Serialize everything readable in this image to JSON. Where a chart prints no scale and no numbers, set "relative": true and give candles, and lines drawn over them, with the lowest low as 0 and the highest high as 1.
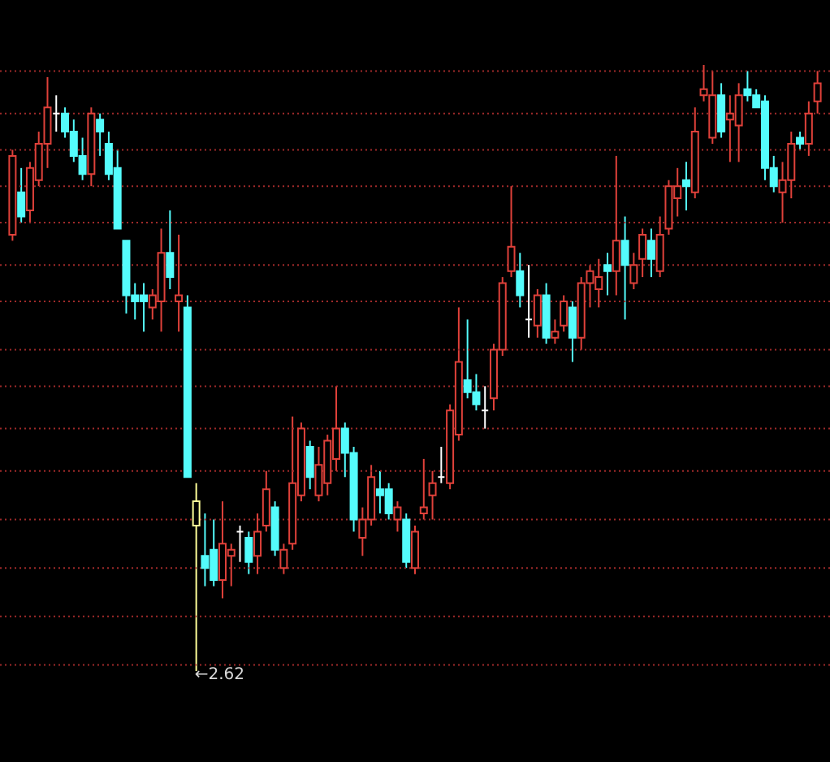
{
  "chart_data": {
    "type": "candlestick",
    "relative": true,
    "ref_lines": [
      {
        "axis": "y",
        "value": 0.01,
        "color": "#a02a2a",
        "line_style": "dotted"
      },
      {
        "axis": "y",
        "value": 0.09,
        "color": "#a02a2a",
        "line_style": "dotted"
      },
      {
        "axis": "y",
        "value": 0.17,
        "color": "#a02a2a",
        "line_style": "dotted"
      },
      {
        "axis": "y",
        "value": 0.25,
        "color": "#a02a2a",
        "line_style": "dotted"
      },
      {
        "axis": "y",
        "value": 0.33,
        "color": "#a02a2a",
        "line_style": "dotted"
      },
      {
        "axis": "y",
        "value": 0.4,
        "color": "#a02a2a",
        "line_style": "dotted"
      },
      {
        "axis": "y",
        "value": 0.47,
        "color": "#a02a2a",
        "line_style": "dotted"
      },
      {
        "axis": "y",
        "value": 0.53,
        "color": "#a02a2a",
        "line_style": "dotted"
      },
      {
        "axis": "y",
        "value": 0.61,
        "color": "#a02a2a",
        "line_style": "dotted"
      },
      {
        "axis": "y",
        "value": 0.67,
        "color": "#a02a2a",
        "line_style": "dotted"
      },
      {
        "axis": "y",
        "value": 0.74,
        "color": "#a02a2a",
        "line_style": "dotted"
      },
      {
        "axis": "y",
        "value": 0.8,
        "color": "#a02a2a",
        "line_style": "dotted"
      },
      {
        "axis": "y",
        "value": 0.86,
        "color": "#a02a2a",
        "line_style": "dotted"
      },
      {
        "axis": "y",
        "value": 0.92,
        "color": "#a02a2a",
        "line_style": "dotted"
      },
      {
        "axis": "y",
        "value": 0.99,
        "color": "#a02a2a",
        "line_style": "dotted"
      }
    ],
    "categories": [
      null,
      null,
      null,
      null,
      null,
      null,
      null,
      null,
      null,
      null,
      null,
      null,
      null,
      null,
      null,
      null,
      null,
      null,
      null,
      null,
      null,
      null,
      null,
      null,
      null,
      null,
      null,
      null,
      null,
      null,
      null,
      null,
      null,
      null,
      null,
      null,
      null,
      null,
      null,
      null,
      null,
      null,
      null,
      null,
      null,
      null,
      null,
      null,
      null,
      null,
      null,
      null,
      null,
      null,
      null,
      null,
      null,
      null,
      null,
      null,
      null,
      null,
      null,
      null,
      null,
      null,
      null,
      null,
      null,
      null,
      null,
      null,
      null,
      null,
      null,
      null,
      null,
      null,
      null,
      null,
      null,
      null,
      null,
      null,
      null,
      null,
      null,
      null,
      null,
      null,
      null,
      null,
      null
    ],
    "ohlc": [
      [
        0.72,
        0.86,
        0.71,
        0.85
      ],
      [
        0.79,
        0.83,
        0.74,
        0.75
      ],
      [
        0.76,
        0.84,
        0.74,
        0.83
      ],
      [
        0.81,
        0.89,
        0.8,
        0.87
      ],
      [
        0.87,
        0.98,
        0.83,
        0.93
      ],
      [
        0.92,
        0.95,
        0.89,
        0.92
      ],
      [
        0.92,
        0.93,
        0.88,
        0.89
      ],
      [
        0.89,
        0.91,
        0.84,
        0.85
      ],
      [
        0.85,
        0.88,
        0.81,
        0.82
      ],
      [
        0.82,
        0.93,
        0.8,
        0.92
      ],
      [
        0.91,
        0.92,
        0.85,
        0.89
      ],
      [
        0.87,
        0.89,
        0.81,
        0.82
      ],
      [
        0.83,
        0.86,
        0.73,
        0.73
      ],
      [
        0.71,
        0.71,
        0.59,
        0.62
      ],
      [
        0.62,
        0.64,
        0.58,
        0.61
      ],
      [
        0.62,
        0.64,
        0.56,
        0.61
      ],
      [
        0.6,
        0.63,
        0.58,
        0.62
      ],
      [
        0.61,
        0.73,
        0.56,
        0.69
      ],
      [
        0.69,
        0.76,
        0.63,
        0.65
      ],
      [
        0.61,
        0.72,
        0.56,
        0.62
      ],
      [
        0.6,
        0.62,
        0.32,
        0.32
      ],
      [
        0.24,
        0.31,
        0,
        0.28
      ],
      [
        0.19,
        0.26,
        0.14,
        0.17
      ],
      [
        0.2,
        0.25,
        0.14,
        0.15
      ],
      [
        0.15,
        0.28,
        0.12,
        0.21
      ],
      [
        0.19,
        0.21,
        0.14,
        0.2
      ],
      [
        0.23,
        0.24,
        0.18,
        0.23
      ],
      [
        0.22,
        0.23,
        0.16,
        0.18
      ],
      [
        0.19,
        0.26,
        0.16,
        0.23
      ],
      [
        0.24,
        0.33,
        0.23,
        0.3
      ],
      [
        0.27,
        0.28,
        0.19,
        0.2
      ],
      [
        0.17,
        0.21,
        0.16,
        0.2
      ],
      [
        0.21,
        0.42,
        0.2,
        0.31
      ],
      [
        0.29,
        0.41,
        0.28,
        0.4
      ],
      [
        0.37,
        0.38,
        0.3,
        0.32
      ],
      [
        0.29,
        0.37,
        0.28,
        0.34
      ],
      [
        0.31,
        0.39,
        0.29,
        0.38
      ],
      [
        0.35,
        0.47,
        0.33,
        0.4
      ],
      [
        0.4,
        0.41,
        0.32,
        0.36
      ],
      [
        0.36,
        0.37,
        0.23,
        0.25
      ],
      [
        0.22,
        0.27,
        0.19,
        0.25
      ],
      [
        0.25,
        0.34,
        0.24,
        0.32
      ],
      [
        0.3,
        0.33,
        0.26,
        0.29
      ],
      [
        0.3,
        0.31,
        0.25,
        0.26
      ],
      [
        0.25,
        0.28,
        0.23,
        0.27
      ],
      [
        0.25,
        0.26,
        0.17,
        0.18
      ],
      [
        0.17,
        0.24,
        0.16,
        0.23
      ],
      [
        0.26,
        0.35,
        0.25,
        0.27
      ],
      [
        0.29,
        0.33,
        0.25,
        0.31
      ],
      [
        0.32,
        0.37,
        0.31,
        0.32
      ],
      [
        0.31,
        0.44,
        0.3,
        0.43
      ],
      [
        0.39,
        0.6,
        0.38,
        0.51
      ],
      [
        0.48,
        0.58,
        0.45,
        0.46
      ],
      [
        0.46,
        0.49,
        0.43,
        0.44
      ],
      [
        0.43,
        0.47,
        0.4,
        0.43
      ],
      [
        0.45,
        0.54,
        0.43,
        0.53
      ],
      [
        0.53,
        0.65,
        0.52,
        0.64
      ],
      [
        0.66,
        0.8,
        0.65,
        0.7
      ],
      [
        0.66,
        0.69,
        0.6,
        0.62
      ],
      [
        0.58,
        0.67,
        0.55,
        0.58
      ],
      [
        0.57,
        0.63,
        0.55,
        0.62
      ],
      [
        0.62,
        0.64,
        0.54,
        0.55
      ],
      [
        0.55,
        0.58,
        0.54,
        0.56
      ],
      [
        0.57,
        0.62,
        0.56,
        0.61
      ],
      [
        0.6,
        0.61,
        0.51,
        0.55
      ],
      [
        0.55,
        0.65,
        0.53,
        0.64
      ],
      [
        0.64,
        0.67,
        0.6,
        0.66
      ],
      [
        0.63,
        0.68,
        0.6,
        0.65
      ],
      [
        0.67,
        0.69,
        0.62,
        0.66
      ],
      [
        0.66,
        0.85,
        0.62,
        0.71
      ],
      [
        0.71,
        0.75,
        0.58,
        0.67
      ],
      [
        0.64,
        0.69,
        0.63,
        0.67
      ],
      [
        0.68,
        0.73,
        0.65,
        0.72
      ],
      [
        0.71,
        0.73,
        0.65,
        0.68
      ],
      [
        0.66,
        0.75,
        0.65,
        0.72
      ],
      [
        0.73,
        0.81,
        0.72,
        0.8
      ],
      [
        0.78,
        0.83,
        0.75,
        0.8
      ],
      [
        0.81,
        0.84,
        0.76,
        0.8
      ],
      [
        0.79,
        0.93,
        0.78,
        0.89
      ],
      [
        0.95,
        1,
        0.94,
        0.96
      ],
      [
        0.88,
        0.99,
        0.87,
        0.95
      ],
      [
        0.95,
        0.97,
        0.88,
        0.89
      ],
      [
        0.91,
        0.95,
        0.84,
        0.92
      ],
      [
        0.9,
        0.97,
        0.84,
        0.95
      ],
      [
        0.96,
        0.99,
        0.94,
        0.95
      ],
      [
        0.95,
        0.96,
        0.93,
        0.93
      ],
      [
        0.94,
        0.95,
        0.81,
        0.83
      ],
      [
        0.83,
        0.85,
        0.79,
        0.8
      ],
      [
        0.79,
        0.84,
        0.74,
        0.81
      ],
      [
        0.81,
        0.89,
        0.78,
        0.87
      ],
      [
        0.88,
        0.89,
        0.86,
        0.87
      ],
      [
        0.87,
        0.94,
        0.85,
        0.92
      ],
      [
        0.94,
        0.99,
        0.92,
        0.97
      ]
    ],
    "colors": [
      "#e0413a",
      "#54fcfc",
      "#e0413a",
      "#e0413a",
      "#e0413a",
      "#ffffff",
      "#54fcfc",
      "#54fcfc",
      "#54fcfc",
      "#e0413a",
      "#54fcfc",
      "#54fcfc",
      "#54fcfc",
      "#54fcfc",
      "#54fcfc",
      "#54fcfc",
      "#e0413a",
      "#e0413a",
      "#54fcfc",
      "#e0413a",
      "#54fcfc",
      "#ffff99",
      "#54fcfc",
      "#54fcfc",
      "#e0413a",
      "#e0413a",
      "#ffffff",
      "#54fcfc",
      "#e0413a",
      "#e0413a",
      "#54fcfc",
      "#e0413a",
      "#e0413a",
      "#e0413a",
      "#54fcfc",
      "#e0413a",
      "#e0413a",
      "#e0413a",
      "#54fcfc",
      "#54fcfc",
      "#e0413a",
      "#e0413a",
      "#54fcfc",
      "#54fcfc",
      "#e0413a",
      "#54fcfc",
      "#e0413a",
      "#e0413a",
      "#e0413a",
      "#ffffff",
      "#e0413a",
      "#e0413a",
      "#54fcfc",
      "#54fcfc",
      "#ffffff",
      "#e0413a",
      "#e0413a",
      "#e0413a",
      "#54fcfc",
      "#ffffff",
      "#e0413a",
      "#54fcfc",
      "#e0413a",
      "#e0413a",
      "#54fcfc",
      "#e0413a",
      "#e0413a",
      "#e0413a",
      "#54fcfc",
      "#e0413a",
      "#54fcfc",
      "#e0413a",
      "#e0413a",
      "#54fcfc",
      "#e0413a",
      "#e0413a",
      "#e0413a",
      "#54fcfc",
      "#e0413a",
      "#e0413a",
      "#e0413a",
      "#54fcfc",
      "#e0413a",
      "#e0413a",
      "#54fcfc",
      "#54fcfc",
      "#54fcfc",
      "#54fcfc",
      "#e0413a",
      "#e0413a",
      "#54fcfc",
      "#e0413a",
      "#e0413a"
    ],
    "annotations": [
      "←2.62"
    ]
  }
}
